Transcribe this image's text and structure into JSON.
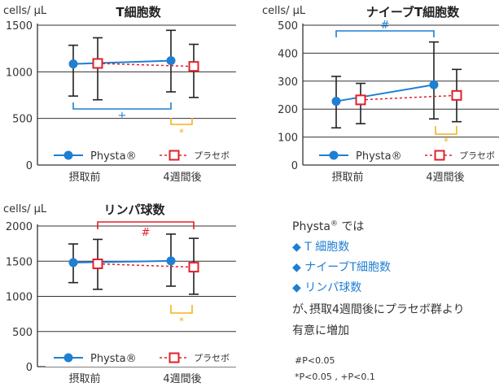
{
  "colors": {
    "physta": "#1f7fd2",
    "placebo": "#e0202a",
    "gold": "#f2b21c",
    "axis": "#333333",
    "grid": "#333333"
  },
  "chart_data": [
    {
      "type": "line",
      "title": "T細胞数",
      "ylabel": "cells/ μL",
      "categories": [
        "摂取前",
        "4週間後"
      ],
      "ylim": [
        0,
        1500
      ],
      "yticks": [
        "0",
        "500",
        "1000",
        "1500"
      ],
      "grid": true,
      "legend": "bottom",
      "series": [
        {
          "name": "Physta®",
          "values": [
            1085,
            1120
          ],
          "error": [
            [
              740,
              1285
            ],
            [
              785,
              1445
            ]
          ]
        },
        {
          "name": "プラセボ",
          "values": [
            1090,
            1058
          ],
          "error": [
            [
              700,
              1365
            ],
            [
              725,
              1295
            ]
          ]
        }
      ],
      "annotations": [
        {
          "symbol": "+",
          "between": "Physta®: 摂取前–4週間後"
        },
        {
          "symbol": "*",
          "at": "4週間後"
        }
      ]
    },
    {
      "type": "line",
      "title": "ナイーブT細胞数",
      "ylabel": "cells/ μL",
      "categories": [
        "摂取前",
        "4週間後"
      ],
      "ylim": [
        0,
        500
      ],
      "yticks": [
        "0",
        "100",
        "200",
        "300",
        "400",
        "500"
      ],
      "grid": true,
      "legend": "bottom",
      "series": [
        {
          "name": "Physta®",
          "values": [
            228,
            287
          ],
          "error": [
            [
              133,
              317
            ],
            [
              165,
              440
            ]
          ]
        },
        {
          "name": "プラセボ",
          "values": [
            233,
            249
          ],
          "error": [
            [
              148,
              292
            ],
            [
              155,
              342
            ]
          ]
        }
      ],
      "annotations": [
        {
          "symbol": "#",
          "between": "Physta®: 摂取前–4週間後"
        },
        {
          "symbol": "*",
          "at": "4週間後"
        }
      ]
    },
    {
      "type": "line",
      "title": "リンパ球数",
      "ylabel": "cells/ μL",
      "categories": [
        "摂取前",
        "4週間後"
      ],
      "ylim": [
        0,
        2000
      ],
      "yticks": [
        "0",
        "500",
        "1000",
        "1500",
        "2000"
      ],
      "grid": true,
      "legend": "bottom",
      "series": [
        {
          "name": "Physta®",
          "values": [
            1480,
            1505
          ],
          "error": [
            [
              1195,
              1745
            ],
            [
              1145,
              1885
            ]
          ]
        },
        {
          "name": "プラセボ",
          "values": [
            1462,
            1415
          ],
          "error": [
            [
              1100,
              1810
            ],
            [
              1030,
              1825
            ]
          ]
        }
      ],
      "annotations": [
        {
          "symbol": "#",
          "between": "プラセボ: 摂取前–4週間後"
        },
        {
          "symbol": "*",
          "at": "4週間後"
        }
      ]
    }
  ],
  "notes": {
    "brand": "Physta",
    "reg": "®",
    "wa": " では",
    "bullet": "◆",
    "items": [
      "T 細胞数",
      "ナイーブT細胞数",
      "リンパ球数"
    ],
    "line1": "が､摂取4週間後にプラセボ群より",
    "line2": "有意に増加",
    "foot1": "#P<0.05",
    "foot2": "*P<0.05 , +P<0.1"
  }
}
